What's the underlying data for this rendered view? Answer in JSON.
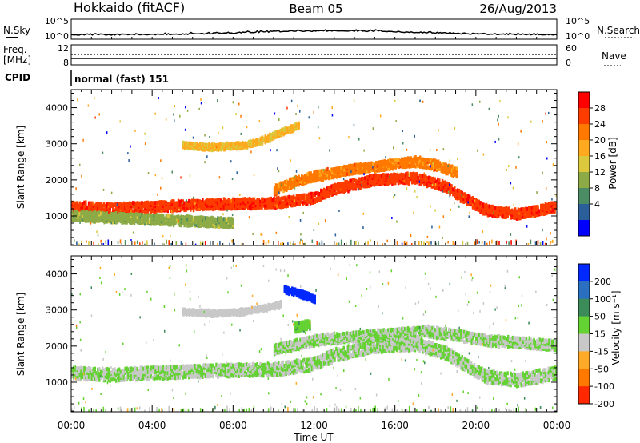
{
  "header": {
    "station": "Hokkaido (fitACF)",
    "beam": "Beam 05",
    "date": "26/Aug/2013"
  },
  "noise_panel": {
    "left_label": "N.Sky",
    "right_label": "N.Search",
    "left_ticks": [
      "10^5",
      "10^0"
    ],
    "right_ticks": [
      "10^5",
      "10^0"
    ]
  },
  "freq_panel": {
    "left_label_top": "Freq.",
    "left_label_bottom": "[MHz]",
    "right_label": "Nave",
    "left_ticks": [
      "12",
      "8"
    ],
    "right_ticks": [
      "60",
      "0"
    ]
  },
  "cpid_panel": {
    "label": "CPID",
    "text": "normal (fast) 151"
  },
  "x_axis": {
    "label": "Time UT",
    "ticks": [
      "00:00",
      "04:00",
      "08:00",
      "12:00",
      "16:00",
      "20:00",
      "00:00"
    ]
  },
  "power_colorbar": {
    "label": "Power [dB]",
    "ticks": [
      "28",
      "24",
      "20",
      "16",
      "12",
      "8",
      "4"
    ],
    "colors": [
      "#ff0000",
      "#ff3c00",
      "#ff7800",
      "#ffaa1e",
      "#dcc83c",
      "#8caa46",
      "#4b8c64",
      "#2b5f99",
      "#0000ff"
    ]
  },
  "velocity_colorbar": {
    "label": "Velocity [m s⁻¹]",
    "ticks": [
      "200",
      "100",
      "50",
      "15",
      "-15",
      "-50",
      "-100",
      "-200"
    ],
    "colors": [
      "#0028ff",
      "#2a6fc0",
      "#3c8c5a",
      "#64d232",
      "#c8c8c8",
      "#ffaa28",
      "#ff7800",
      "#ff2800"
    ]
  },
  "chart_data": [
    {
      "type": "heatmap",
      "title": "Power",
      "xlabel": "Time UT",
      "ylabel": "Slant Range [km]",
      "xlim": [
        0,
        24
      ],
      "ylim": [
        180,
        4500
      ],
      "yticks": [
        1000,
        2000,
        3000,
        4000
      ],
      "colorbar_label": "Power [dB]",
      "colorbar_range": [
        0,
        30
      ],
      "echo_bands": [
        {
          "x": [
            0,
            2,
            4,
            6,
            8,
            10,
            12,
            13,
            15,
            17,
            18.5,
            19.5,
            20.5,
            22,
            24
          ],
          "y": [
            1250,
            1200,
            1250,
            1300,
            1330,
            1350,
            1500,
            1750,
            2000,
            2050,
            1800,
            1450,
            1150,
            1050,
            1250
          ],
          "width_km": 230,
          "power_db": 26
        },
        {
          "x": [
            10,
            11,
            12,
            13,
            14,
            15,
            16,
            17,
            18,
            19
          ],
          "y": [
            1700,
            1950,
            2100,
            2200,
            2300,
            2350,
            2450,
            2500,
            2400,
            2200
          ],
          "width_km": 220,
          "power_db": 22
        },
        {
          "x": [
            5.5,
            7,
            8.5,
            9.5,
            10.5,
            11.2
          ],
          "y": [
            2950,
            2900,
            2950,
            3100,
            3350,
            3500
          ],
          "width_km": 130,
          "power_db": 18
        },
        {
          "x": [
            0,
            2,
            4,
            6,
            8
          ],
          "y": [
            1000,
            950,
            900,
            850,
            800
          ],
          "width_km": 220,
          "power_db": 13
        }
      ]
    },
    {
      "type": "heatmap",
      "title": "Velocity",
      "xlabel": "Time UT",
      "ylabel": "Slant Range [km]",
      "xlim": [
        0,
        24
      ],
      "ylim": [
        180,
        4500
      ],
      "yticks": [
        1000,
        2000,
        3000,
        4000
      ],
      "colorbar_label": "Velocity [m s⁻¹]",
      "colorbar_range": [
        -250,
        250
      ],
      "echo_bands": [
        {
          "x": [
            0,
            2,
            4,
            6,
            8,
            10,
            12,
            13,
            15,
            17,
            18.5,
            19.5,
            20.5,
            22,
            24
          ],
          "y": [
            1250,
            1200,
            1250,
            1300,
            1330,
            1350,
            1500,
            1750,
            2000,
            2050,
            1800,
            1450,
            1150,
            1050,
            1250
          ],
          "width_km": 300,
          "velocity_ms": 0
        },
        {
          "x": [
            10,
            12,
            14,
            16,
            17.5,
            19,
            20.5,
            22,
            24
          ],
          "y": [
            1900,
            2150,
            2250,
            2350,
            2400,
            2300,
            2150,
            2100,
            2000
          ],
          "width_km": 240,
          "velocity_ms": 0
        },
        {
          "x": [
            5.5,
            7,
            8.5,
            9.5,
            10.3
          ],
          "y": [
            2950,
            2900,
            2950,
            3050,
            3150
          ],
          "width_km": 120,
          "velocity_ms": -35
        },
        {
          "x": [
            10.5,
            11,
            11.5,
            12
          ],
          "y": [
            3550,
            3500,
            3400,
            3300
          ],
          "width_km": 150,
          "velocity_ms": 210
        },
        {
          "x": [
            11,
            11.8
          ],
          "y": [
            2500,
            2600
          ],
          "width_km": 220,
          "velocity_ms": 60
        }
      ]
    }
  ]
}
